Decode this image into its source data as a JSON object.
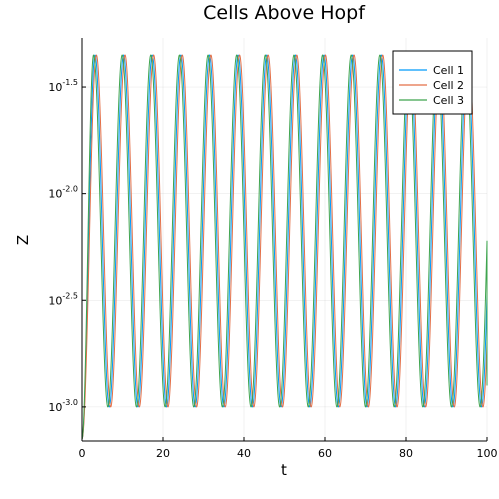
{
  "chart_data": {
    "type": "line",
    "title": "Cells Above Hopf",
    "xlabel": "t",
    "ylabel": "Z",
    "xlim": [
      0,
      100
    ],
    "ylim_log10": [
      -3.16,
      -1.27
    ],
    "x_ticks": [
      0,
      20,
      40,
      60,
      80,
      100
    ],
    "y_ticks": [
      {
        "base": "10",
        "exp": "-3.0",
        "log10": -3.0
      },
      {
        "base": "10",
        "exp": "-2.5",
        "log10": -2.5
      },
      {
        "base": "10",
        "exp": "-2.0",
        "log10": -2.0
      },
      {
        "base": "10",
        "exp": "-1.5",
        "log10": -1.5
      }
    ],
    "grid": true,
    "legend_position": "top-right",
    "oscillation": {
      "period": 7.07,
      "log10_min": -3.0,
      "log10_max": -1.35,
      "first_peak_t": 3.2,
      "initial_log10": -3.15
    },
    "series": [
      {
        "name": "Cell 1",
        "color": "#009AFA",
        "phase_shift": 0.0,
        "end_log10": -2.3
      },
      {
        "name": "Cell 2",
        "color": "#E36F47",
        "phase_shift": 0.35,
        "end_log10": -2.6
      },
      {
        "name": "Cell 3",
        "color": "#3EA44E",
        "phase_shift": -0.35,
        "end_log10": -2.9
      }
    ]
  }
}
